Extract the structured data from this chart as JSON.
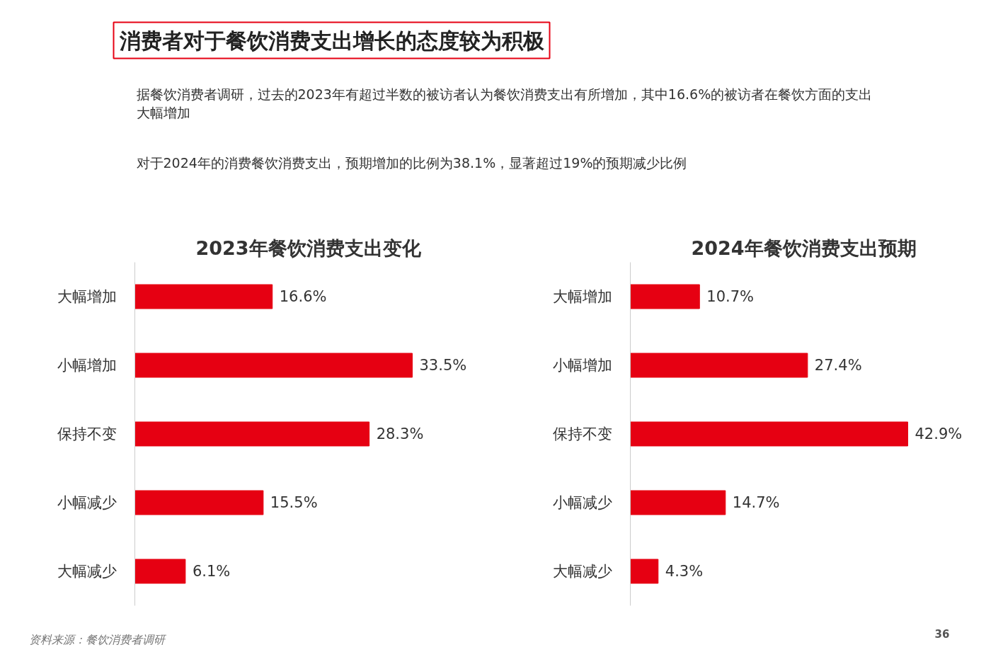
{
  "chart_data": [
    {
      "type": "other",
      "title": "消费者对于餐饮消费支出增长的态度较为积极",
      "annotations": [
        "据餐饮消费者调研，过去的2023年有超过半数的被访者认为餐饮消费支出有所增加，其中16.6%的被访者在餐饮方面的支出大幅增加",
        "对于2024年的消费餐饮消费支出，预期增加的比例为38.1%，显著超过19%的预期减少比例",
        "资料来源：餐饮消费者调研",
        "36"
      ]
    },
    {
      "type": "bar",
      "orientation": "horizontal",
      "title": "2023年餐饮消费支出变化",
      "categories": [
        "大幅增加",
        "小幅增加",
        "保持不变",
        "小幅减少",
        "大幅减少"
      ],
      "values": [
        16.6,
        33.5,
        28.3,
        15.5,
        6.1
      ],
      "color": "#e60012",
      "value_labels": [
        "16.6%",
        "33.5%",
        "28.3%",
        "15.5%",
        "6.1%"
      ]
    },
    {
      "type": "bar",
      "orientation": "horizontal",
      "title": "2024年餐饮消费支出预期",
      "categories": [
        "大幅增加",
        "小幅增加",
        "保持不变",
        "小幅减少",
        "大幅减少"
      ],
      "values": [
        10.7,
        27.4,
        42.9,
        14.7,
        4.3
      ],
      "color": "#e60012",
      "value_labels": [
        "10.7%",
        "27.4%",
        "42.9%",
        "14.7%",
        "4.3%"
      ]
    }
  ]
}
